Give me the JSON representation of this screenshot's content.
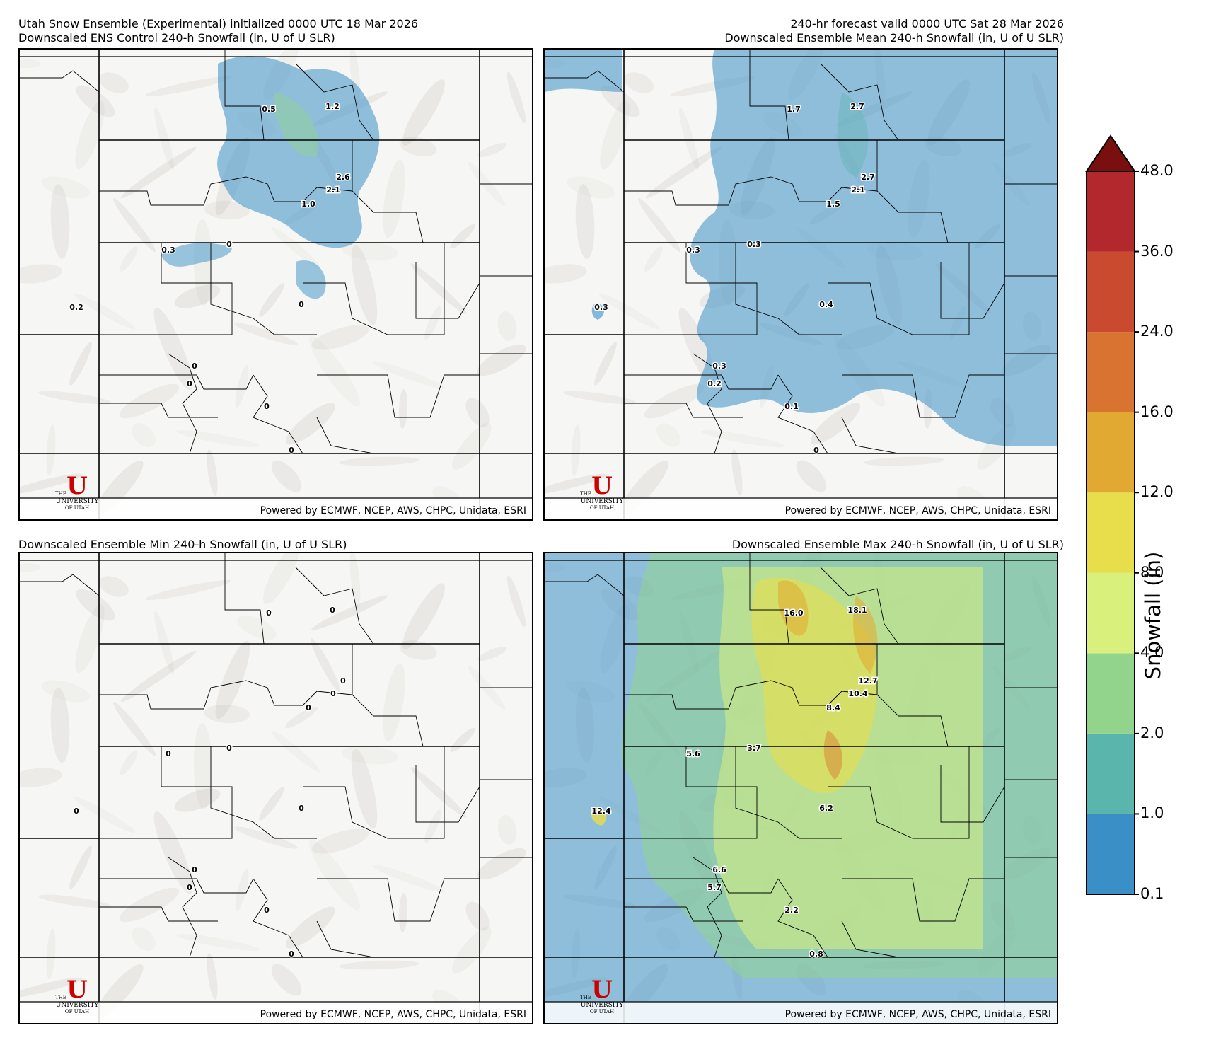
{
  "header": {
    "left_line1": "Utah Snow Ensemble (Experimental) initialized 0000 UTC 18 Mar 2026",
    "left_line2": "Downscaled ENS Control 240-h Snowfall (in, U of U SLR)",
    "right_line1": "240-hr forecast valid 0000 UTC Sat 28 Mar 2026",
    "right_line2": "Downscaled Ensemble Mean 240-h Snowfall (in, U of U SLR)"
  },
  "panels": {
    "min_title": "Downscaled Ensemble Min 240-h Snowfall (in, U of U SLR)",
    "max_title": "Downscaled Ensemble Max 240-h Snowfall (in, U of U SLR)",
    "credit": "Powered by ECMWF, NCEP, AWS, CHPC, Unidata, ESRI",
    "logo": {
      "the": "THE",
      "name": "UNIVERSITY",
      "of": "OF UTAH"
    },
    "control_labels": [
      "0.5",
      "1.2",
      "2.6",
      "2.1",
      "1.0",
      "0.3",
      "0",
      "0.2",
      "0",
      "0",
      "0",
      "0",
      "0"
    ],
    "mean_labels": [
      "1.7",
      "2.7",
      "2.7",
      "2.1",
      "1.5",
      "0.3",
      "0.3",
      "0.3",
      "0.4",
      "0.3",
      "0.2",
      "0.1",
      "0"
    ],
    "min_labels": [
      "0",
      "0",
      "0",
      "0",
      "0",
      "0",
      "0",
      "0",
      "0",
      "0",
      "0",
      "0",
      "0"
    ],
    "max_labels": [
      "16.0",
      "18.1",
      "12.7",
      "10.4",
      "8.4",
      "5.6",
      "3.7",
      "12.4",
      "6.2",
      "6.6",
      "5.7",
      "2.2",
      "0.8"
    ]
  },
  "colorbar": {
    "title": "Snowfall (in)",
    "levels": [
      "0.1",
      "1.0",
      "2.0",
      "4.0",
      "8.0",
      "12.0",
      "16.0",
      "24.0",
      "36.0",
      "48.0"
    ],
    "colors": [
      "#3a8fc6",
      "#5ab5ad",
      "#92d48c",
      "#d9f07c",
      "#e8dd4a",
      "#e2a932",
      "#d97331",
      "#c94a2f",
      "#b3282d"
    ],
    "extend_color": "#7a0f0f"
  }
}
